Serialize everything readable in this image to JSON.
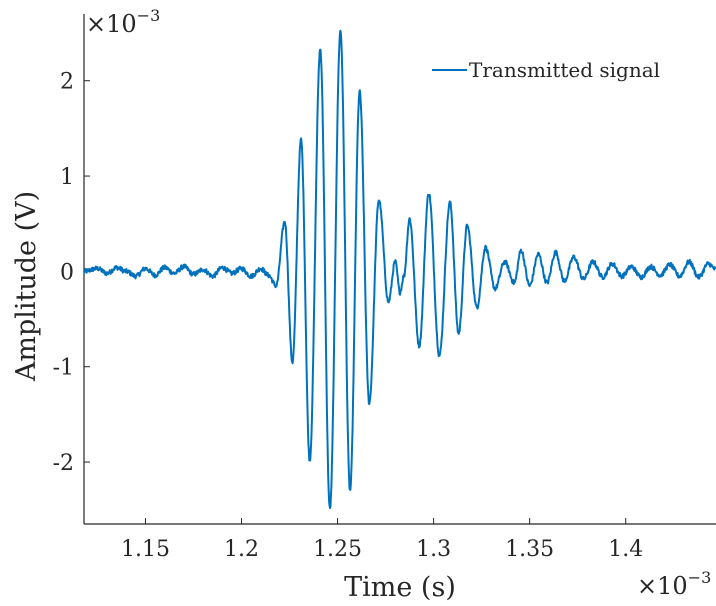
{
  "chart_data": {
    "type": "line",
    "title": "",
    "xlabel": "Time (s)",
    "ylabel": "Amplitude (V)",
    "x_multiplier": {
      "base": "×10",
      "exponent": "−3"
    },
    "y_multiplier": {
      "base": "×10",
      "exponent": "−3"
    },
    "xlim": [
      1.118,
      1.447
    ],
    "ylim": [
      -2.65,
      2.7
    ],
    "x_ticks": [
      1.15,
      1.2,
      1.25,
      1.3,
      1.35,
      1.4
    ],
    "x_tick_labels": [
      "1.15",
      "1.2",
      "1.25",
      "1.3",
      "1.35",
      "1.4"
    ],
    "y_ticks": [
      -2,
      -1,
      0,
      1,
      2
    ],
    "y_tick_labels": [
      "-2",
      "-1",
      "0",
      "1",
      "2"
    ],
    "grid": false,
    "legend_position": "top-right",
    "series": [
      {
        "name": "Transmitted signal",
        "color": "#0072BD",
        "points": [
          [
            1.118,
            0.0
          ],
          [
            1.125,
            0.03
          ],
          [
            1.13,
            -0.02
          ],
          [
            1.135,
            0.04
          ],
          [
            1.14,
            0.0
          ],
          [
            1.145,
            -0.05
          ],
          [
            1.15,
            0.03
          ],
          [
            1.155,
            -0.04
          ],
          [
            1.16,
            0.04
          ],
          [
            1.165,
            -0.02
          ],
          [
            1.17,
            0.05
          ],
          [
            1.175,
            -0.03
          ],
          [
            1.18,
            0.02
          ],
          [
            1.185,
            -0.05
          ],
          [
            1.19,
            0.04
          ],
          [
            1.195,
            -0.02
          ],
          [
            1.2,
            0.03
          ],
          [
            1.205,
            -0.05
          ],
          [
            1.21,
            0.03
          ],
          [
            1.214,
            -0.04
          ],
          [
            1.218,
            -0.15
          ],
          [
            1.2225,
            0.52
          ],
          [
            1.2265,
            -0.95
          ],
          [
            1.231,
            1.38
          ],
          [
            1.2355,
            -1.98
          ],
          [
            1.241,
            2.33
          ],
          [
            1.246,
            -2.49
          ],
          [
            1.2515,
            2.52
          ],
          [
            1.2565,
            -2.3
          ],
          [
            1.2615,
            1.88
          ],
          [
            1.2665,
            -1.38
          ],
          [
            1.2715,
            0.75
          ],
          [
            1.2765,
            -0.32
          ],
          [
            1.28,
            0.1
          ],
          [
            1.2825,
            -0.22
          ],
          [
            1.2845,
            -0.05
          ],
          [
            1.2875,
            0.55
          ],
          [
            1.2925,
            -0.78
          ],
          [
            1.2975,
            0.82
          ],
          [
            1.303,
            -0.88
          ],
          [
            1.3085,
            0.72
          ],
          [
            1.313,
            -0.65
          ],
          [
            1.3175,
            0.48
          ],
          [
            1.3225,
            -0.38
          ],
          [
            1.327,
            0.25
          ],
          [
            1.332,
            -0.18
          ],
          [
            1.337,
            0.1
          ],
          [
            1.342,
            -0.12
          ],
          [
            1.3455,
            0.22
          ],
          [
            1.35,
            -0.15
          ],
          [
            1.3545,
            0.18
          ],
          [
            1.359,
            -0.12
          ],
          [
            1.3635,
            0.2
          ],
          [
            1.368,
            -0.1
          ],
          [
            1.373,
            0.15
          ],
          [
            1.378,
            -0.08
          ],
          [
            1.383,
            0.1
          ],
          [
            1.388,
            -0.06
          ],
          [
            1.393,
            0.08
          ],
          [
            1.398,
            -0.05
          ],
          [
            1.403,
            0.05
          ],
          [
            1.408,
            -0.06
          ],
          [
            1.413,
            0.05
          ],
          [
            1.418,
            -0.04
          ],
          [
            1.423,
            0.07
          ],
          [
            1.428,
            -0.05
          ],
          [
            1.433,
            0.1
          ],
          [
            1.438,
            -0.06
          ],
          [
            1.443,
            0.08
          ],
          [
            1.447,
            0.02
          ]
        ]
      }
    ]
  }
}
